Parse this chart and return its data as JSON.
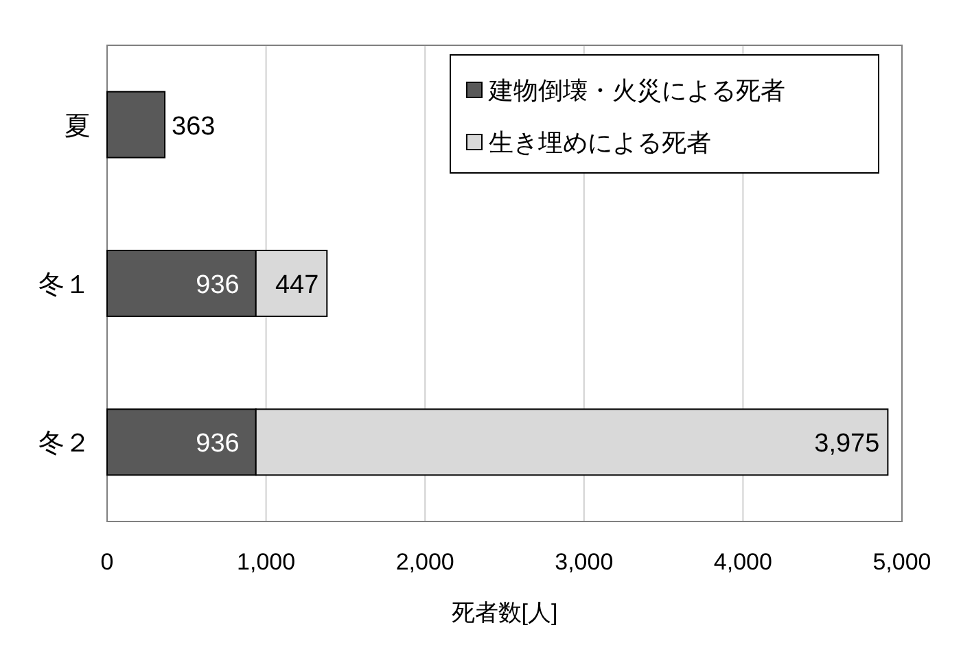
{
  "chart_data": {
    "type": "bar",
    "orientation": "horizontal",
    "stacked": true,
    "categories": [
      "夏",
      "冬１",
      "冬２"
    ],
    "series": [
      {
        "name": "建物倒壊・火災による死者",
        "color": "#595959",
        "values": [
          363,
          936,
          936
        ],
        "value_labels": [
          "363",
          "936",
          "936"
        ]
      },
      {
        "name": "生き埋めによる死者",
        "color": "#d9d9d9",
        "values": [
          null,
          447,
          3975
        ],
        "value_labels": [
          null,
          "447",
          "3,975"
        ]
      }
    ],
    "xlim": [
      0,
      5000
    ],
    "xticks": [
      0,
      {
        "value": 1000,
        "label": "1,000"
      },
      {
        "value": 2000,
        "label": "2,000"
      },
      {
        "value": 3000,
        "label": "3,000"
      },
      {
        "value": 4000,
        "label": "4,000"
      },
      {
        "value": 5000,
        "label": "5,000"
      }
    ],
    "xlabel": "死者数[人]",
    "grid": "x",
    "legend": "top right"
  }
}
